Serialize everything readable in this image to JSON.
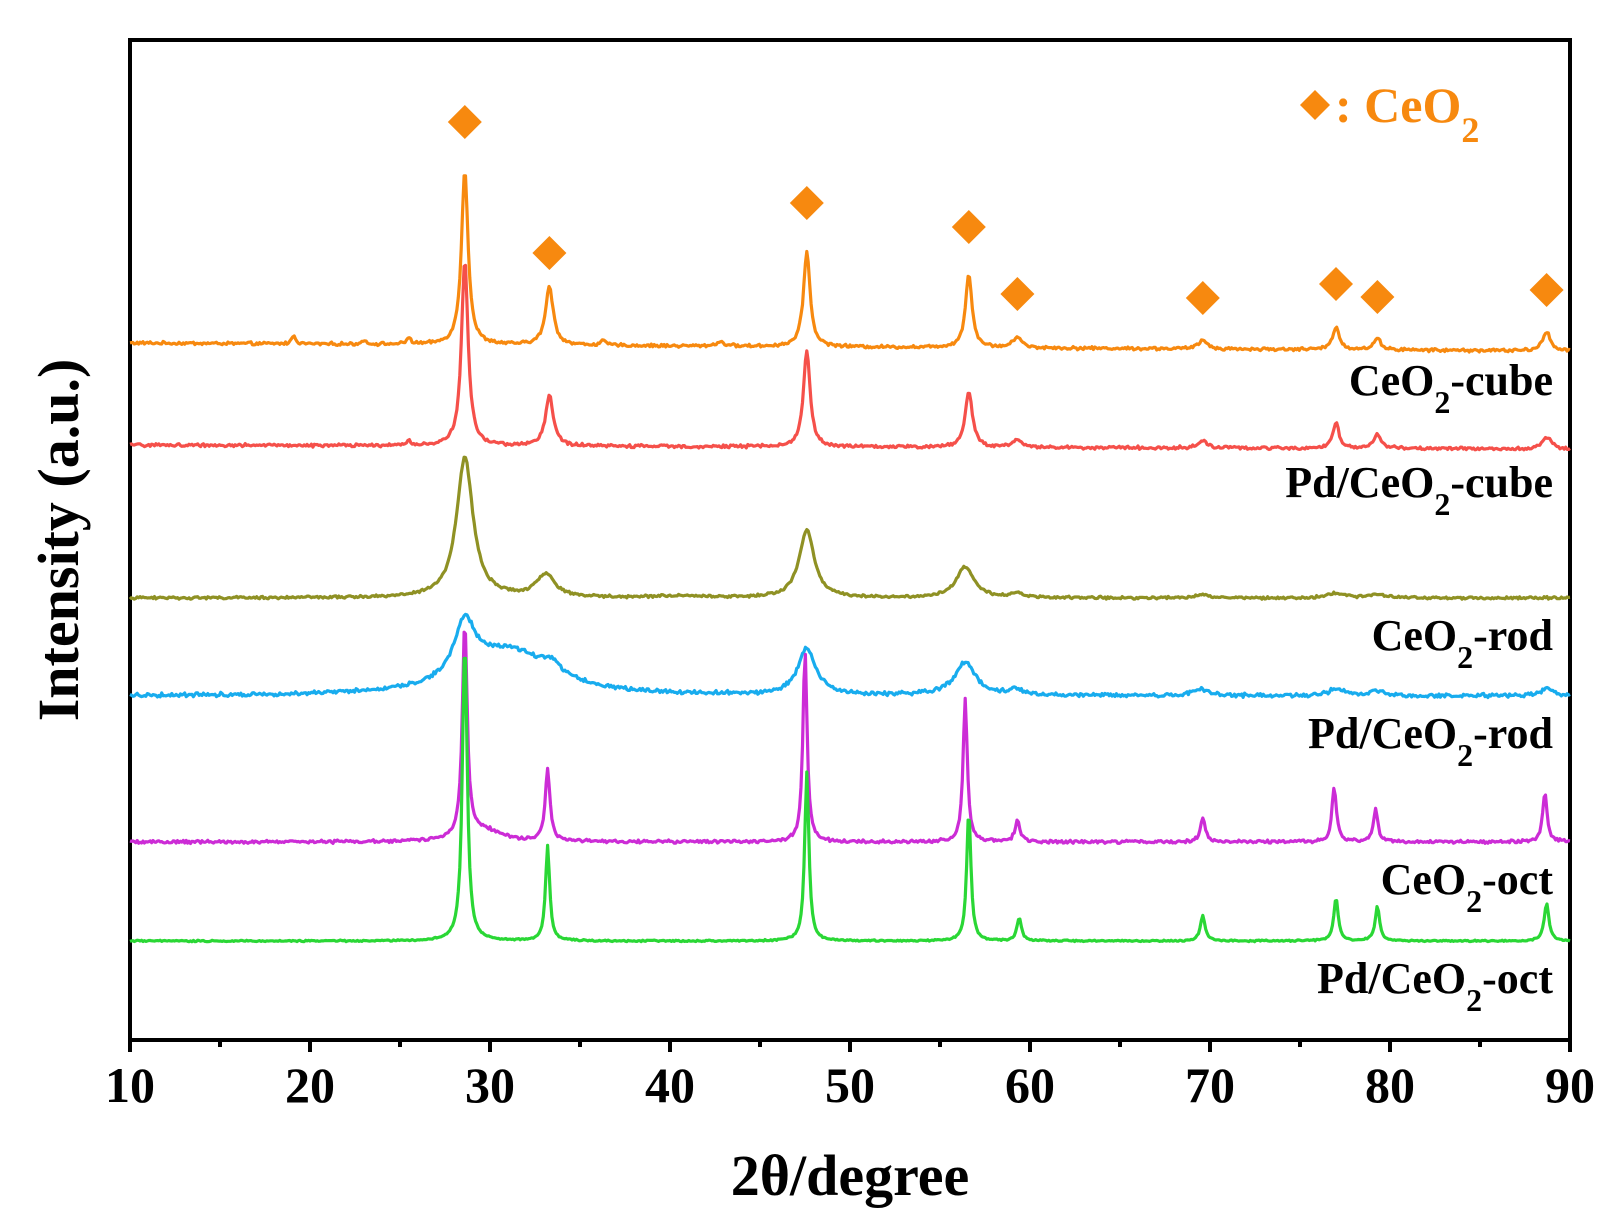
{
  "chart_data": {
    "type": "line",
    "xlabel": "2θ/degree",
    "ylabel": "Intensity (a.u.)",
    "xlim": [
      10,
      90
    ],
    "ylim": [
      0,
      10
    ],
    "x_ticks": [
      10,
      20,
      30,
      40,
      50,
      60,
      70,
      80,
      90
    ],
    "x_minor_step": 5,
    "grid": false,
    "legend": {
      "marker": "diamond",
      "label_main": ": CeO",
      "label_sub": "2",
      "color": "#f7890f",
      "position": "top-right"
    },
    "reference_peaks_2theta": [
      28.6,
      33.3,
      47.6,
      56.6,
      59.3,
      69.6,
      77.0,
      79.3,
      88.7
    ],
    "reference_marker_heights": [
      9.18,
      7.87,
      8.37,
      8.13,
      7.46,
      7.42,
      7.56,
      7.43,
      7.5
    ],
    "series": [
      {
        "name": "CeO2-cube",
        "label_main": "CeO",
        "label_sub": "2",
        "label_suffix": "-cube",
        "color": "#f7890f",
        "baseline": 6.97,
        "noise": 0.012,
        "slope": -0.08,
        "peaks": [
          [
            28.6,
            1.75,
            0.22
          ],
          [
            33.3,
            0.58,
            0.26
          ],
          [
            47.6,
            0.95,
            0.22
          ],
          [
            56.6,
            0.73,
            0.22
          ],
          [
            59.3,
            0.11,
            0.28
          ],
          [
            69.6,
            0.09,
            0.28
          ],
          [
            77.0,
            0.23,
            0.22
          ],
          [
            79.3,
            0.11,
            0.25
          ],
          [
            88.7,
            0.19,
            0.26
          ],
          [
            19.1,
            0.09,
            0.12
          ],
          [
            25.5,
            0.07,
            0.12
          ],
          [
            23.0,
            0.05,
            0.1
          ],
          [
            36.3,
            0.04,
            0.2
          ],
          [
            42.8,
            0.04,
            0.3
          ]
        ]
      },
      {
        "name": "Pd/CeO2-cube",
        "label_main": "Pd/CeO",
        "label_sub": "2",
        "label_suffix": "-cube",
        "color": "#f5504a",
        "baseline": 5.95,
        "noise": 0.012,
        "slope": -0.04,
        "peaks": [
          [
            28.6,
            1.85,
            0.22
          ],
          [
            33.3,
            0.51,
            0.26
          ],
          [
            47.6,
            0.97,
            0.22
          ],
          [
            56.6,
            0.56,
            0.24
          ],
          [
            59.3,
            0.08,
            0.28
          ],
          [
            69.6,
            0.07,
            0.3
          ],
          [
            77.0,
            0.26,
            0.2
          ],
          [
            79.3,
            0.14,
            0.25
          ],
          [
            88.7,
            0.12,
            0.3
          ],
          [
            25.5,
            0.05,
            0.12
          ]
        ]
      },
      {
        "name": "CeO2-rod",
        "label_main": "CeO",
        "label_sub": "2",
        "label_suffix": "-rod",
        "color": "#8f9124",
        "baseline": 4.42,
        "noise": 0.01,
        "slope": 0,
        "peaks": [
          [
            28.6,
            1.4,
            0.55
          ],
          [
            33.1,
            0.23,
            0.6
          ],
          [
            47.6,
            0.68,
            0.5
          ],
          [
            56.4,
            0.31,
            0.6
          ],
          [
            59.3,
            0.04,
            0.4
          ],
          [
            69.6,
            0.03,
            0.5
          ],
          [
            77.0,
            0.05,
            0.5
          ],
          [
            79.3,
            0.04,
            0.5
          ],
          [
            40.5,
            0.02,
            1.5
          ]
        ]
      },
      {
        "name": "Pd/CeO2-rod",
        "label_main": "Pd/CeO",
        "label_sub": "2",
        "label_suffix": "-rod",
        "color": "#18acee",
        "baseline": 3.44,
        "noise": 0.016,
        "slope": 0,
        "peaks": [
          [
            28.6,
            0.55,
            0.7
          ],
          [
            31.0,
            0.45,
            2.8
          ],
          [
            33.4,
            0.12,
            0.6
          ],
          [
            47.6,
            0.46,
            0.6
          ],
          [
            56.4,
            0.33,
            0.7
          ],
          [
            59.2,
            0.06,
            0.4
          ],
          [
            69.5,
            0.07,
            0.5
          ],
          [
            77.0,
            0.07,
            0.5
          ],
          [
            79.3,
            0.05,
            0.4
          ],
          [
            88.7,
            0.07,
            0.4
          ]
        ]
      },
      {
        "name": "CeO2-oct",
        "label_main": "CeO",
        "label_sub": "2",
        "label_suffix": "-oct",
        "color": "#cc2cd6",
        "baseline": 1.98,
        "noise": 0.012,
        "slope": 0,
        "peaks": [
          [
            28.6,
            2.15,
            0.16
          ],
          [
            33.2,
            0.72,
            0.16
          ],
          [
            47.5,
            1.91,
            0.14
          ],
          [
            56.4,
            1.44,
            0.14
          ],
          [
            59.3,
            0.22,
            0.16
          ],
          [
            69.6,
            0.24,
            0.16
          ],
          [
            76.9,
            0.55,
            0.15
          ],
          [
            79.2,
            0.33,
            0.15
          ],
          [
            88.6,
            0.49,
            0.15
          ],
          [
            29.6,
            0.12,
            1.2
          ]
        ]
      },
      {
        "name": "Pd/CeO2-oct",
        "label_main": "Pd/CeO",
        "label_sub": "2",
        "label_suffix": "-oct",
        "color": "#2ad735",
        "baseline": 0.99,
        "noise": 0.006,
        "slope": 0,
        "peaks": [
          [
            28.6,
            3.0,
            0.16
          ],
          [
            33.2,
            0.95,
            0.14
          ],
          [
            47.6,
            1.69,
            0.14
          ],
          [
            56.6,
            1.3,
            0.14
          ],
          [
            59.4,
            0.23,
            0.15
          ],
          [
            69.6,
            0.25,
            0.16
          ],
          [
            77.0,
            0.43,
            0.15
          ],
          [
            79.3,
            0.34,
            0.15
          ],
          [
            88.7,
            0.37,
            0.16
          ]
        ]
      }
    ]
  }
}
